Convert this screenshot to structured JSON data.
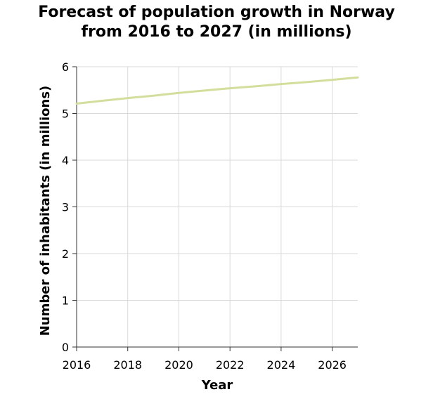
{
  "chart_data": {
    "type": "line",
    "title_lines": [
      "Forecast of population growth in Norway",
      "from 2016 to 2027 (in millions)"
    ],
    "xlabel": "Year",
    "ylabel": "Number of inhabitants (in millions)",
    "xlim": [
      2016,
      2027
    ],
    "ylim": [
      0,
      6
    ],
    "x_ticks": [
      2016,
      2018,
      2020,
      2022,
      2024,
      2026
    ],
    "x_tick_labels": [
      "2016",
      "2018",
      "2020",
      "2022",
      "2024",
      "2026"
    ],
    "y_ticks": [
      0,
      1,
      2,
      3,
      4,
      5,
      6
    ],
    "y_tick_labels": [
      "0",
      "1",
      "2",
      "3",
      "4",
      "5",
      "6"
    ],
    "grid": true,
    "line_color": "#d4de9c",
    "series": [
      {
        "x": [
          2016,
          2017,
          2018,
          2019,
          2020,
          2021,
          2022,
          2023,
          2024,
          2025,
          2026,
          2027
        ],
        "values": [
          5.21,
          5.27,
          5.33,
          5.38,
          5.44,
          5.49,
          5.54,
          5.58,
          5.63,
          5.67,
          5.72,
          5.77
        ]
      }
    ]
  }
}
